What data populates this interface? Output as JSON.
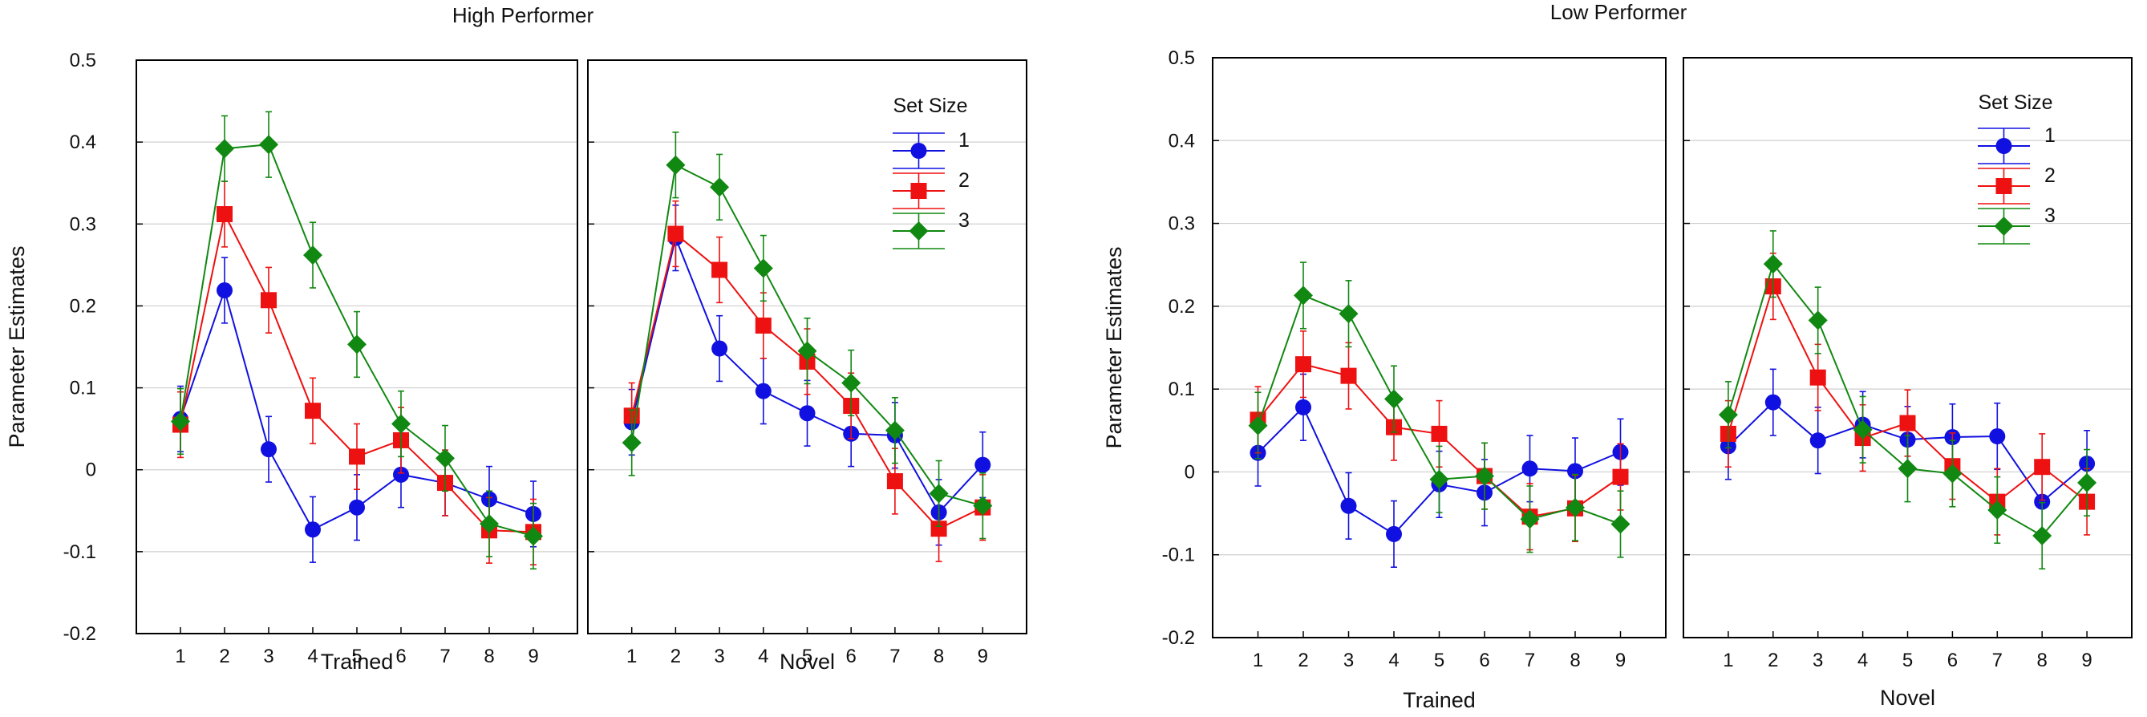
{
  "chart_data": [
    {
      "type": "line",
      "title": "High Performer",
      "ylabel": "Parameter Estimates",
      "ylim": [
        -0.2,
        0.5
      ],
      "yticks": [
        -0.2,
        -0.1,
        0,
        0.1,
        0.2,
        0.3,
        0.4,
        0.5
      ],
      "ytick_labels": [
        "-0.2",
        "-0.1",
        "0",
        "0.1",
        "0.2",
        "0.3",
        "0.4",
        "0.5"
      ],
      "grid": true,
      "legend": {
        "title": "Set Size",
        "placement": "top-right"
      },
      "panels": [
        {
          "xlabel": "Trained",
          "x": [
            1,
            2,
            3,
            4,
            5,
            6,
            7,
            8,
            9
          ],
          "series": [
            {
              "name": "1",
              "color": "#1010e0",
              "marker": "circle",
              "values": [
                0.062,
                0.219,
                0.025,
                -0.073,
                -0.046,
                -0.006,
                -0.016,
                -0.036,
                -0.054
              ],
              "errors": [
                0.04,
                0.04,
                0.04,
                0.04,
                0.04,
                0.04,
                0.04,
                0.04,
                0.04
              ]
            },
            {
              "name": "2",
              "color": "#ee1111",
              "marker": "square",
              "values": [
                0.055,
                0.312,
                0.207,
                0.072,
                0.016,
                0.036,
                -0.016,
                -0.074,
                -0.076
              ],
              "errors": [
                0.04,
                0.04,
                0.04,
                0.04,
                0.04,
                0.04,
                0.04,
                0.04,
                0.04
              ]
            },
            {
              "name": "3",
              "color": "#118811",
              "marker": "diamond",
              "values": [
                0.059,
                0.392,
                0.397,
                0.262,
                0.153,
                0.056,
                0.014,
                -0.066,
                -0.081
              ],
              "errors": [
                0.04,
                0.04,
                0.04,
                0.04,
                0.04,
                0.04,
                0.04,
                0.04,
                0.04
              ]
            }
          ]
        },
        {
          "xlabel": "Novel",
          "x": [
            1,
            2,
            3,
            4,
            5,
            6,
            7,
            8,
            9
          ],
          "series": [
            {
              "name": "1",
              "color": "#1010e0",
              "marker": "circle",
              "values": [
                0.058,
                0.283,
                0.148,
                0.096,
                0.069,
                0.044,
                0.042,
                -0.052,
                0.006
              ],
              "errors": [
                0.04,
                0.04,
                0.04,
                0.04,
                0.04,
                0.04,
                0.04,
                0.04,
                0.04
              ]
            },
            {
              "name": "2",
              "color": "#ee1111",
              "marker": "square",
              "values": [
                0.066,
                0.288,
                0.244,
                0.176,
                0.132,
                0.078,
                -0.014,
                -0.072,
                -0.046
              ],
              "errors": [
                0.04,
                0.04,
                0.04,
                0.04,
                0.04,
                0.04,
                0.04,
                0.04,
                0.04
              ]
            },
            {
              "name": "3",
              "color": "#118811",
              "marker": "diamond",
              "values": [
                0.033,
                0.372,
                0.345,
                0.246,
                0.145,
                0.106,
                0.048,
                -0.029,
                -0.044
              ],
              "errors": [
                0.04,
                0.04,
                0.04,
                0.04,
                0.04,
                0.04,
                0.04,
                0.04,
                0.04
              ]
            }
          ]
        }
      ]
    },
    {
      "type": "line",
      "title": "Low Performer",
      "ylabel": "Parameter Estimates",
      "ylim": [
        -0.2,
        0.5
      ],
      "yticks": [
        -0.2,
        -0.1,
        0,
        0.1,
        0.2,
        0.3,
        0.4,
        0.5
      ],
      "ytick_labels": [
        "-0.2",
        "-0.1",
        "0",
        "0.1",
        "0.2",
        "0.3",
        "0.4",
        "0.5"
      ],
      "grid": true,
      "legend": {
        "title": "Set Size",
        "placement": "top-right"
      },
      "panels": [
        {
          "xlabel": "Trained",
          "x": [
            1,
            2,
            3,
            4,
            5,
            6,
            7,
            8,
            9
          ],
          "series": [
            {
              "name": "1",
              "color": "#1010e0",
              "marker": "circle",
              "values": [
                0.023,
                0.078,
                -0.041,
                -0.075,
                -0.015,
                -0.025,
                0.004,
                0.001,
                0.024
              ],
              "errors": [
                0.04,
                0.04,
                0.04,
                0.04,
                0.04,
                0.04,
                0.04,
                0.04,
                0.04
              ]
            },
            {
              "name": "2",
              "color": "#ee1111",
              "marker": "square",
              "values": [
                0.063,
                0.13,
                0.116,
                0.054,
                0.046,
                -0.005,
                -0.054,
                -0.044,
                -0.006
              ],
              "errors": [
                0.04,
                0.04,
                0.04,
                0.04,
                0.04,
                0.04,
                0.04,
                0.04,
                0.04
              ]
            },
            {
              "name": "3",
              "color": "#118811",
              "marker": "diamond",
              "values": [
                0.056,
                0.213,
                0.191,
                0.088,
                -0.009,
                -0.005,
                -0.057,
                -0.043,
                -0.063
              ],
              "errors": [
                0.04,
                0.04,
                0.04,
                0.04,
                0.04,
                0.04,
                0.04,
                0.04,
                0.04
              ]
            }
          ]
        },
        {
          "xlabel": "Novel",
          "x": [
            1,
            2,
            3,
            4,
            5,
            6,
            7,
            8,
            9
          ],
          "series": [
            {
              "name": "1",
              "color": "#1010e0",
              "marker": "circle",
              "values": [
                0.031,
                0.084,
                0.038,
                0.057,
                0.039,
                0.042,
                0.043,
                -0.036,
                0.01
              ],
              "errors": [
                0.04,
                0.04,
                0.04,
                0.04,
                0.04,
                0.04,
                0.04,
                0.04,
                0.04
              ]
            },
            {
              "name": "2",
              "color": "#ee1111",
              "marker": "square",
              "values": [
                0.046,
                0.224,
                0.114,
                0.041,
                0.059,
                0.007,
                -0.036,
                0.006,
                -0.036
              ],
              "errors": [
                0.04,
                0.04,
                0.04,
                0.04,
                0.04,
                0.04,
                0.04,
                0.04,
                0.04
              ]
            },
            {
              "name": "3",
              "color": "#118811",
              "marker": "diamond",
              "values": [
                0.069,
                0.251,
                0.183,
                0.051,
                0.004,
                -0.002,
                -0.046,
                -0.077,
                -0.013
              ],
              "errors": [
                0.04,
                0.04,
                0.04,
                0.04,
                0.04,
                0.04,
                0.04,
                0.04,
                0.04
              ]
            }
          ]
        }
      ]
    }
  ]
}
